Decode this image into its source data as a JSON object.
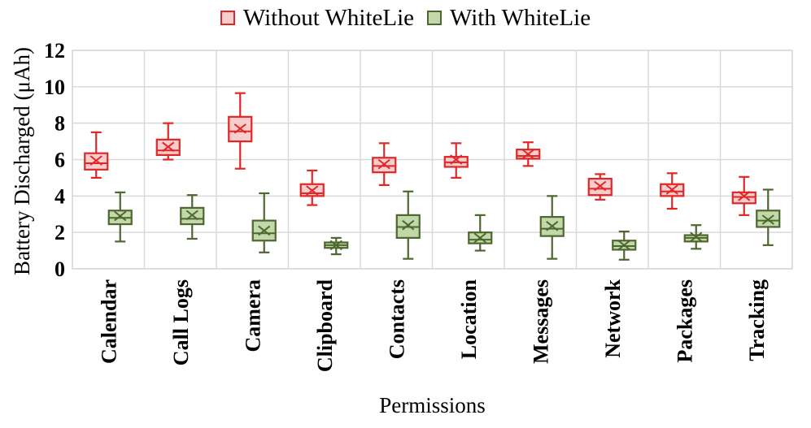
{
  "legend": {
    "position": "top"
  },
  "chart_data": {
    "type": "boxplot",
    "title": "",
    "xlabel": "Permissions",
    "ylabel": "Battery Discharged (μAh)",
    "ylim": [
      0,
      12
    ],
    "yticks": [
      0,
      2,
      4,
      6,
      8,
      10,
      12
    ],
    "grid": true,
    "legend_position": "top",
    "categories": [
      "Calendar",
      "Call Logs",
      "Camera",
      "Clipboard",
      "Contacts",
      "Location",
      "Messages",
      "Network",
      "Packages",
      "Tracking"
    ],
    "series": [
      {
        "name": "Without WhiteLie",
        "stroke": "#e12626",
        "fill": "#f8cdcd",
        "stats": [
          {
            "low": 5.0,
            "q1": 5.45,
            "med": 5.8,
            "q3": 6.35,
            "high": 7.5,
            "mean": 5.95
          },
          {
            "low": 6.0,
            "q1": 6.25,
            "med": 6.5,
            "q3": 7.1,
            "high": 8.0,
            "mean": 6.7
          },
          {
            "low": 5.5,
            "q1": 7.0,
            "med": 7.55,
            "q3": 8.35,
            "high": 9.65,
            "mean": 7.7
          },
          {
            "low": 3.5,
            "q1": 4.0,
            "med": 4.15,
            "q3": 4.65,
            "high": 5.4,
            "mean": 4.3
          },
          {
            "low": 4.6,
            "q1": 5.3,
            "med": 5.65,
            "q3": 6.1,
            "high": 6.9,
            "mean": 5.75
          },
          {
            "low": 5.0,
            "q1": 5.6,
            "med": 5.85,
            "q3": 6.15,
            "high": 6.9,
            "mean": 6.0
          },
          {
            "low": 5.65,
            "q1": 6.05,
            "med": 6.2,
            "q3": 6.55,
            "high": 6.95,
            "mean": 6.3
          },
          {
            "low": 3.8,
            "q1": 4.05,
            "med": 4.4,
            "q3": 4.95,
            "high": 5.2,
            "mean": 4.55
          },
          {
            "low": 3.3,
            "q1": 4.0,
            "med": 4.25,
            "q3": 4.65,
            "high": 5.25,
            "mean": 4.35
          },
          {
            "low": 2.95,
            "q1": 3.6,
            "med": 3.95,
            "q3": 4.2,
            "high": 5.05,
            "mean": 4.0
          }
        ]
      },
      {
        "name": "With WhiteLie",
        "stroke": "#4e672e",
        "fill": "#c2d8aa",
        "stats": [
          {
            "low": 1.5,
            "q1": 2.45,
            "med": 2.8,
            "q3": 3.2,
            "high": 4.2,
            "mean": 2.9
          },
          {
            "low": 1.65,
            "q1": 2.45,
            "med": 2.75,
            "q3": 3.35,
            "high": 4.05,
            "mean": 2.95
          },
          {
            "low": 0.9,
            "q1": 1.55,
            "med": 1.95,
            "q3": 2.65,
            "high": 4.15,
            "mean": 2.1
          },
          {
            "low": 0.8,
            "q1": 1.15,
            "med": 1.3,
            "q3": 1.45,
            "high": 1.7,
            "mean": 1.3
          },
          {
            "low": 0.55,
            "q1": 1.7,
            "med": 2.3,
            "q3": 2.95,
            "high": 4.25,
            "mean": 2.4
          },
          {
            "low": 1.0,
            "q1": 1.4,
            "med": 1.6,
            "q3": 2.0,
            "high": 2.95,
            "mean": 1.7
          },
          {
            "low": 0.55,
            "q1": 1.8,
            "med": 2.2,
            "q3": 2.85,
            "high": 4.0,
            "mean": 2.35
          },
          {
            "low": 0.5,
            "q1": 1.05,
            "med": 1.25,
            "q3": 1.55,
            "high": 2.05,
            "mean": 1.3
          },
          {
            "low": 1.1,
            "q1": 1.5,
            "med": 1.7,
            "q3": 1.85,
            "high": 2.4,
            "mean": 1.75
          },
          {
            "low": 1.3,
            "q1": 2.3,
            "med": 2.65,
            "q3": 3.2,
            "high": 4.35,
            "mean": 2.7
          }
        ]
      }
    ],
    "colors": {
      "grid": "#d9d9d9",
      "text": "#000000",
      "background": "#ffffff"
    }
  }
}
